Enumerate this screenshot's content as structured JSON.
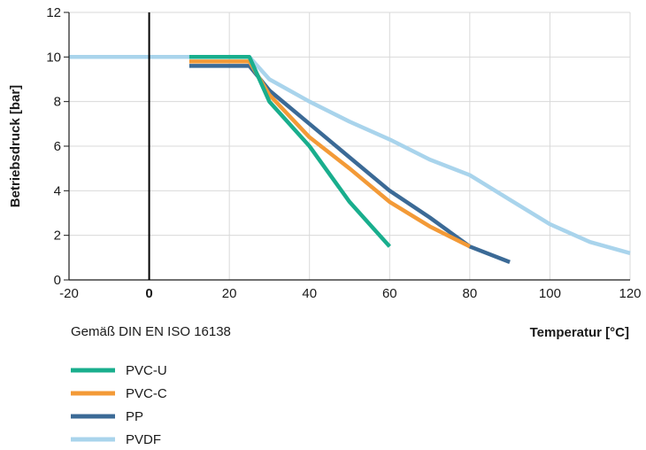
{
  "chart_data": {
    "type": "line",
    "title": "",
    "xlabel": "Temperatur [°C]",
    "ylabel": "Betriebsdruck [bar]",
    "note": "Gemäß DIN EN ISO 16138",
    "xlim": [
      -20,
      120
    ],
    "ylim": [
      0,
      12
    ],
    "xticks": [
      "-20",
      "0",
      "20",
      "40",
      "60",
      "80",
      "100",
      "120"
    ],
    "yticks": [
      "0",
      "2",
      "4",
      "6",
      "8",
      "10",
      "12"
    ],
    "grid": true,
    "legend": "bottom-left",
    "series": [
      {
        "name": "PVDF",
        "color": "#a9d4ec",
        "x": [
          -20,
          25,
          30,
          40,
          50,
          60,
          70,
          80,
          90,
          100,
          110,
          120
        ],
        "y": [
          10,
          10,
          9,
          8,
          7.1,
          6.3,
          5.4,
          4.7,
          3.6,
          2.5,
          1.7,
          1.2
        ]
      },
      {
        "name": "PP",
        "color": "#3b6a96",
        "x": [
          10,
          25,
          30,
          40,
          50,
          60,
          70,
          80,
          90
        ],
        "y": [
          9.6,
          9.6,
          8.5,
          7,
          5.5,
          4,
          2.8,
          1.5,
          0.8
        ]
      },
      {
        "name": "PVC-C",
        "color": "#f39a37",
        "x": [
          10,
          25,
          30,
          40,
          50,
          60,
          70,
          80
        ],
        "y": [
          9.8,
          9.8,
          8.3,
          6.4,
          5,
          3.5,
          2.4,
          1.5
        ]
      },
      {
        "name": "PVC-U",
        "color": "#19ae8d",
        "x": [
          10,
          25,
          30,
          40,
          50,
          60
        ],
        "y": [
          10,
          10,
          8,
          6,
          3.5,
          1.5
        ]
      }
    ],
    "legend_order": [
      "PVC-U",
      "PVC-C",
      "PP",
      "PVDF"
    ]
  }
}
